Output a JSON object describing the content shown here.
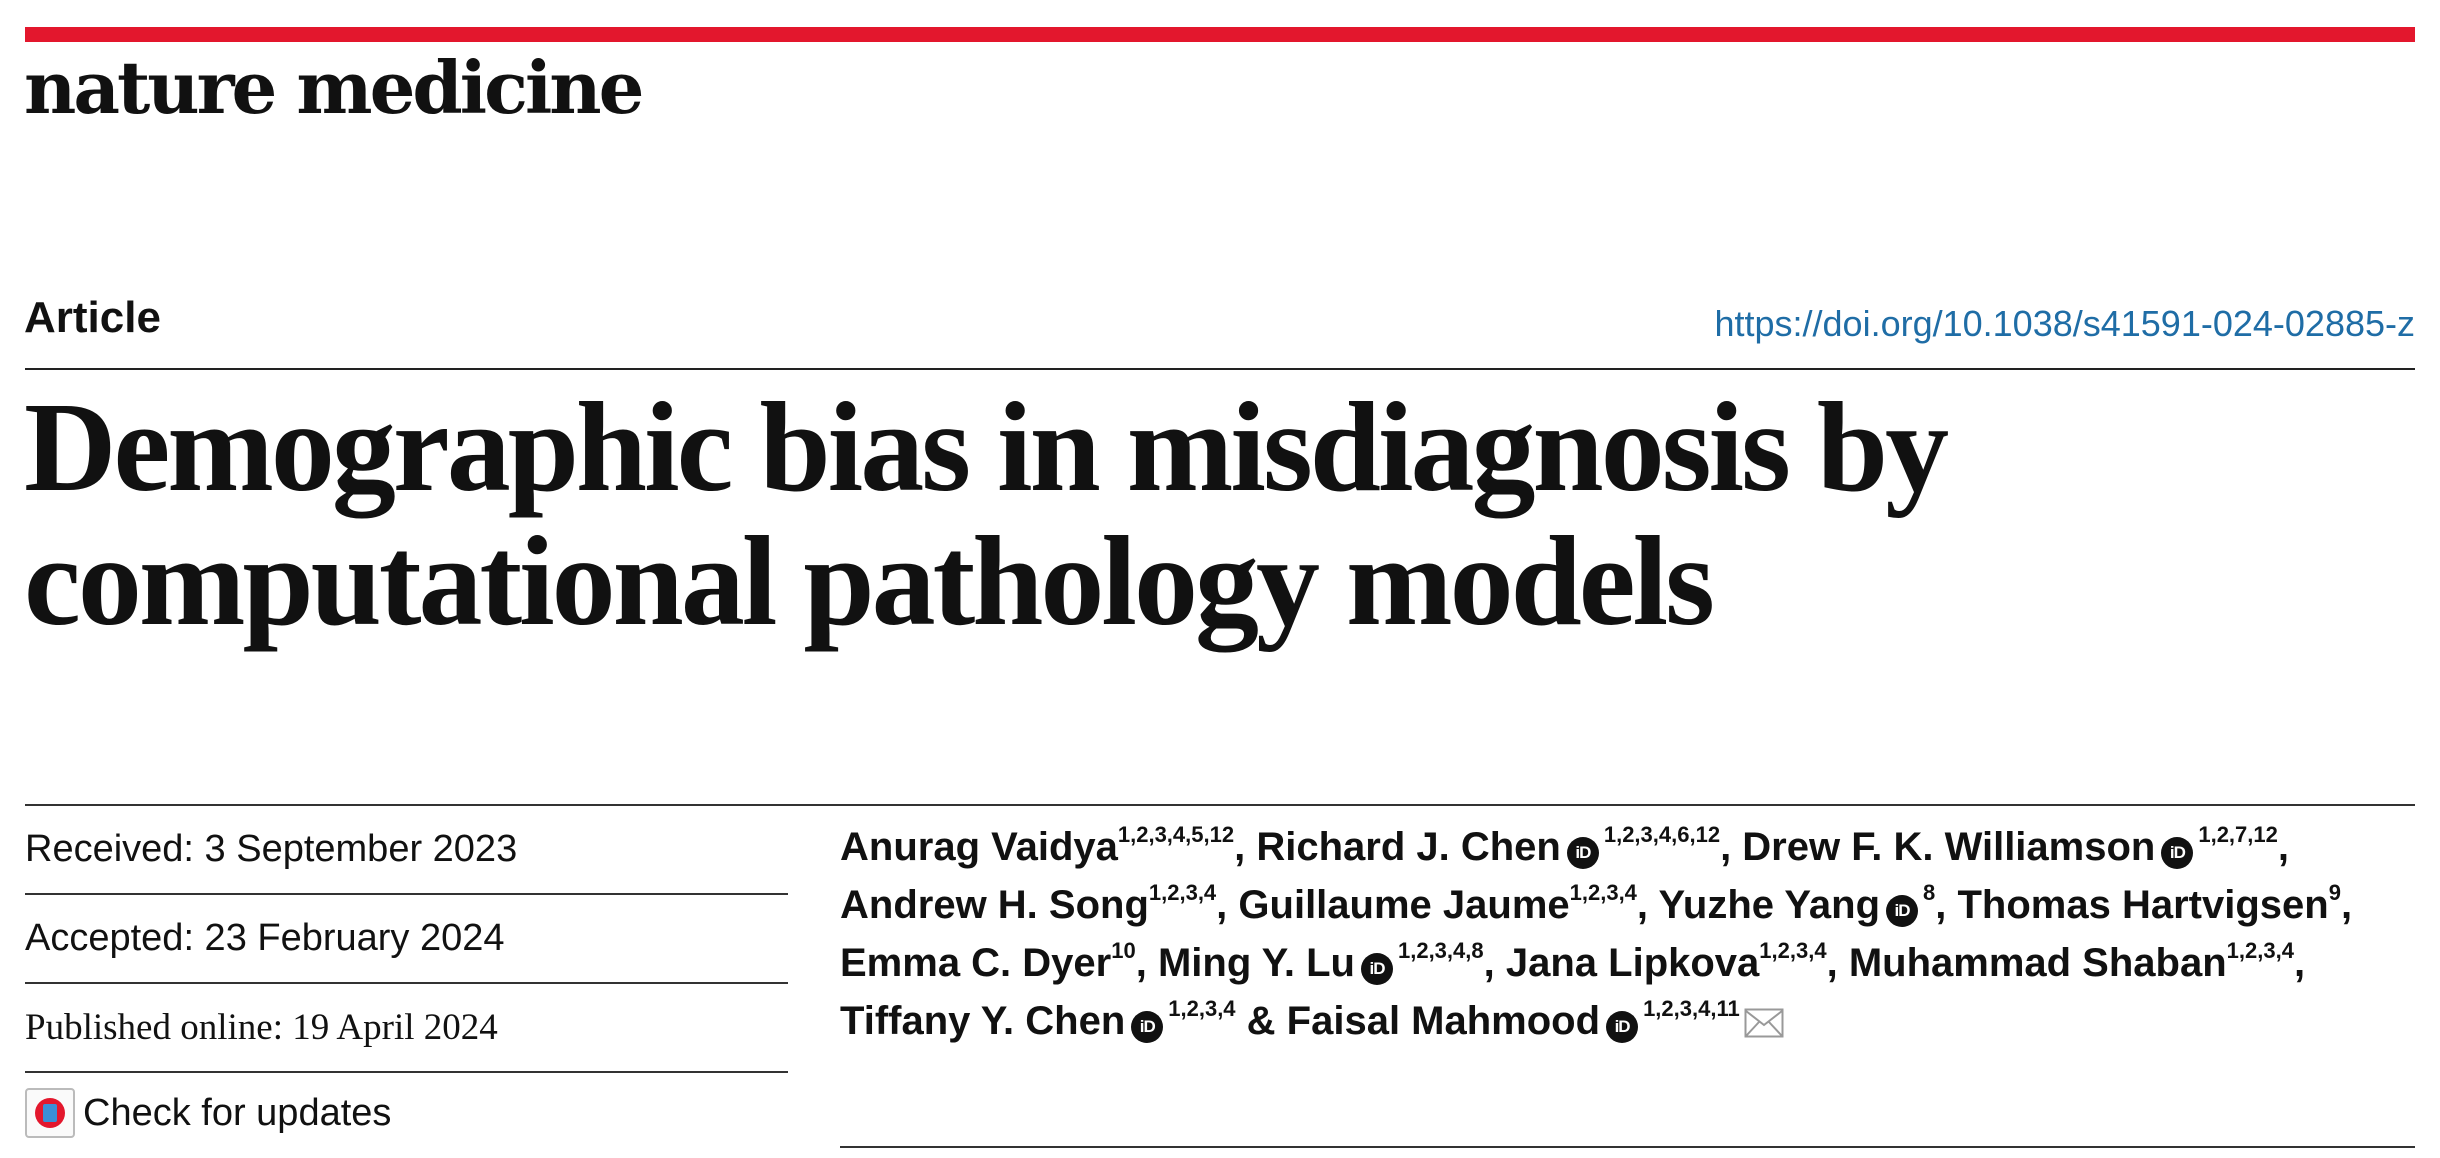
{
  "header": {
    "journal_name": "nature medicine",
    "brand_color": "#e3172d",
    "link_color": "#1f6da6"
  },
  "article": {
    "type": "Article",
    "doi": "https://doi.org/10.1038/s41591-024-02885-z",
    "title": "Demographic bias in misdiagnosis by computational pathology models"
  },
  "dates": {
    "received": "Received: 3 September 2023",
    "accepted": "Accepted: 23 February 2024",
    "published": "Published online: 19 April 2024",
    "check_for_updates": "Check for updates"
  },
  "authors": [
    {
      "name": "Anurag Vaidya",
      "affil": "1,2,3,4,5,12",
      "orcid": false,
      "sep": ", "
    },
    {
      "name": "Richard J. Chen",
      "affil": "1,2,3,4,6,12",
      "orcid": true,
      "sep": ", "
    },
    {
      "name": "Drew F. K. Williamson",
      "affil": "1,2,7,12",
      "orcid": true,
      "sep": ", "
    },
    {
      "name": "Andrew H. Song",
      "affil": "1,2,3,4",
      "orcid": false,
      "sep": ", "
    },
    {
      "name": "Guillaume Jaume",
      "affil": "1,2,3,4",
      "orcid": false,
      "sep": ", "
    },
    {
      "name": "Yuzhe Yang",
      "affil": "8",
      "orcid": true,
      "sep": ", "
    },
    {
      "name": "Thomas Hartvigsen",
      "affil": "9",
      "orcid": false,
      "sep": ", "
    },
    {
      "name": "Emma C. Dyer",
      "affil": "10",
      "orcid": false,
      "sep": ", "
    },
    {
      "name": "Ming Y. Lu",
      "affil": "1,2,3,4,8",
      "orcid": true,
      "sep": ", "
    },
    {
      "name": "Jana Lipkova",
      "affil": "1,2,3,4",
      "orcid": false,
      "sep": ", "
    },
    {
      "name": "Muhammad Shaban",
      "affil": "1,2,3,4",
      "orcid": false,
      "sep": ", "
    },
    {
      "name": "Tiffany Y. Chen",
      "affil": "1,2,3,4",
      "orcid": true,
      "sep": " & "
    },
    {
      "name": "Faisal Mahmood",
      "affil": "1,2,3,4,11",
      "orcid": true,
      "sep": "",
      "corresponding": true
    }
  ],
  "icons": {
    "orcid": "orcid-icon",
    "orcid_text": "iD",
    "corresponding": "envelope-icon",
    "updates": "check-for-updates-icon"
  }
}
